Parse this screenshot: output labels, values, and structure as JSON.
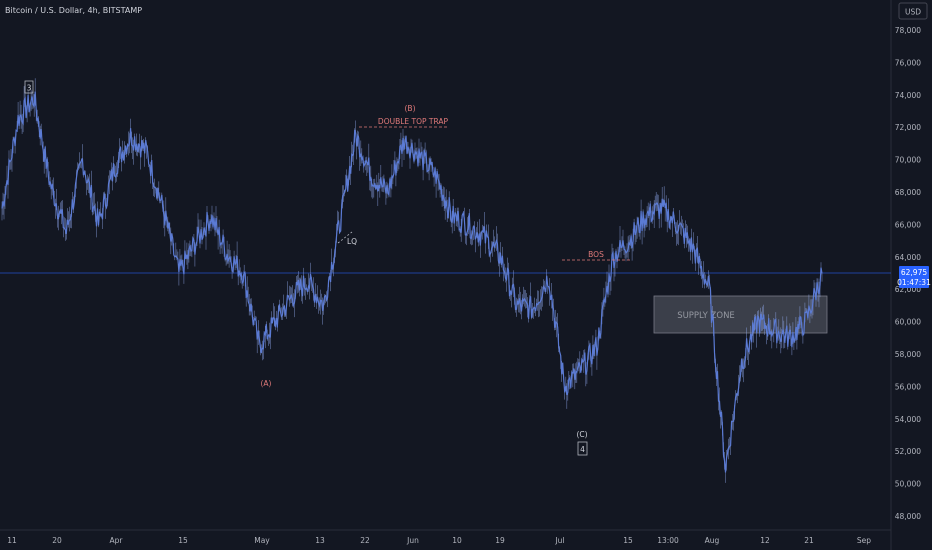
{
  "header": {
    "title": "Bitcoin / U.S. Dollar, 4h, BITSTAMP",
    "currency_button": "USD"
  },
  "current_price": {
    "value": "62,975",
    "countdown": "01:47:31"
  },
  "annotations": {
    "wave_3": "3",
    "wave_b": "(B)",
    "double_top": "DOUBLE TOP TRAP",
    "lq": "LQ",
    "bos": "BOS",
    "wave_a": "(A)",
    "wave_c": "(C)",
    "wave_4": "4",
    "supply_zone": "SUPPLY ZONE"
  },
  "colors": {
    "background": "#131722",
    "series": "#5b7bd5",
    "price_line": "#2962ff",
    "annotation": "#e07a7a",
    "zone_fill": "#5d606b"
  },
  "chart_data": {
    "type": "line",
    "title": "Bitcoin / U.S. Dollar, 4h, BITSTAMP",
    "xlabel": "",
    "ylabel": "USD",
    "ylim": [
      47000,
      79000
    ],
    "grid": false,
    "x_ticks": [
      "11",
      "20",
      "Apr",
      "15",
      "May",
      "13",
      "22",
      "Jun",
      "10",
      "19",
      "Jul",
      "15",
      "13:00",
      "Aug",
      "12",
      "21",
      "Sep"
    ],
    "y_ticks": [
      "78,000",
      "76,000",
      "74,000",
      "72,000",
      "70,000",
      "68,000",
      "66,000",
      "64,000",
      "62,000",
      "60,000",
      "58,000",
      "56,000",
      "54,000",
      "52,000",
      "50,000",
      "48,000"
    ],
    "series": [
      {
        "x": [
          "Mar 7",
          "Mar 10",
          "Mar 14",
          "Mar 17",
          "Mar 20",
          "Mar 24",
          "Mar 27",
          "Apr 1",
          "Apr 4",
          "Apr 8",
          "Apr 11",
          "Apr 14",
          "Apr 18",
          "Apr 21",
          "Apr 25",
          "Apr 28",
          "May 1",
          "May 4",
          "May 8",
          "May 11",
          "May 15",
          "May 18",
          "May 21",
          "May 24",
          "May 28",
          "Jun 1",
          "Jun 4",
          "Jun 7",
          "Jun 10",
          "Jun 13",
          "Jun 17",
          "Jun 20",
          "Jun 24",
          "Jun 27",
          "Jul 1",
          "Jul 5",
          "Jul 8",
          "Jul 11",
          "Jul 15",
          "Jul 18",
          "Jul 22",
          "Jul 25",
          "Jul 29",
          "Aug 1",
          "Aug 3",
          "Aug 5",
          "Aug 8",
          "Aug 11",
          "Aug 14",
          "Aug 17",
          "Aug 20",
          "Aug 23"
        ],
        "values": [
          67000,
          72500,
          73800,
          68500,
          65500,
          70000,
          66000,
          69500,
          71500,
          70500,
          67000,
          63000,
          64800,
          66500,
          64200,
          63000,
          58500,
          60000,
          61500,
          62500,
          61000,
          66000,
          71500,
          69000,
          68000,
          71200,
          70200,
          69000,
          66500,
          66000,
          65200,
          64000,
          61000,
          60800,
          62800,
          56000,
          57000,
          58500,
          64000,
          65000,
          66500,
          67000,
          66000,
          64500,
          62000,
          51000,
          57500,
          60000,
          59500,
          59000,
          60000,
          62975
        ]
      }
    ]
  }
}
